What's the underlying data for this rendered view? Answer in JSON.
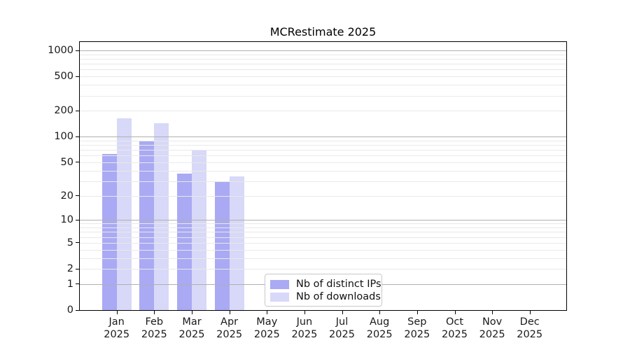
{
  "chart_data": {
    "type": "bar",
    "title": "MCRestimate 2025",
    "x_categories": [
      "Jan",
      "Feb",
      "Mar",
      "Apr",
      "May",
      "Jun",
      "Jul",
      "Aug",
      "Sep",
      "Oct",
      "Nov",
      "Dec"
    ],
    "x_tick_year": "2025",
    "series": [
      {
        "name": "Nb of distinct IPs",
        "color": "#a9a9f4",
        "values": [
          63,
          88,
          37,
          29,
          0,
          0,
          0,
          0,
          0,
          0,
          0,
          0
        ]
      },
      {
        "name": "Nb of downloads",
        "color": "#d8d8f8",
        "values": [
          164,
          144,
          69,
          34,
          0,
          0,
          0,
          0,
          0,
          0,
          0,
          0
        ]
      }
    ],
    "yscale": "log1p",
    "ylim": [
      0,
      1250
    ],
    "yticks": [
      0,
      1,
      2,
      5,
      10,
      20,
      50,
      100,
      200,
      500,
      1000
    ],
    "grid": {
      "axis": "y",
      "major_color": "#b0b0b0",
      "minor_color": "#e9e9e9",
      "drawn_above_bars": true
    },
    "legend": {
      "position": "inside-lower-center",
      "border_color": "#c9c9c9",
      "background": "#ffffff"
    }
  }
}
